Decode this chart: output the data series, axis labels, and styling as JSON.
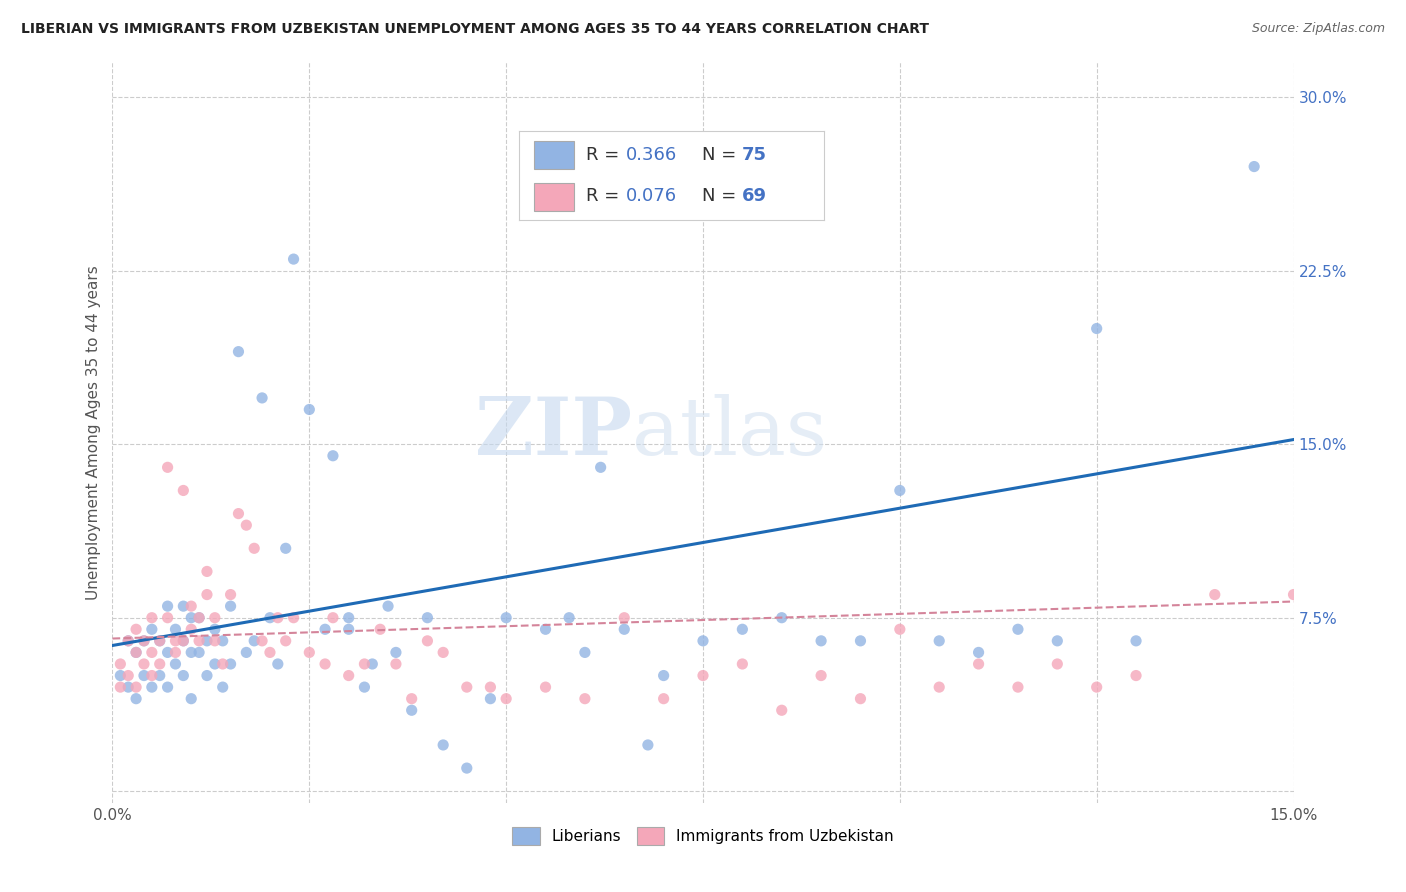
{
  "title": "LIBERIAN VS IMMIGRANTS FROM UZBEKISTAN UNEMPLOYMENT AMONG AGES 35 TO 44 YEARS CORRELATION CHART",
  "source": "Source: ZipAtlas.com",
  "ylabel": "Unemployment Among Ages 35 to 44 years",
  "xlim": [
    0.0,
    0.15
  ],
  "ylim": [
    -0.005,
    0.315
  ],
  "xticks": [
    0.0,
    0.025,
    0.05,
    0.075,
    0.1,
    0.125,
    0.15
  ],
  "xticklabels": [
    "0.0%",
    "",
    "",
    "",
    "",
    "",
    "15.0%"
  ],
  "yticks_right": [
    0.0,
    0.075,
    0.15,
    0.225,
    0.3
  ],
  "yticklabels_right": [
    "",
    "7.5%",
    "15.0%",
    "22.5%",
    "30.0%"
  ],
  "color_blue": "#92b4e3",
  "color_pink": "#f4a7b9",
  "line_color_blue": "#1e6ab5",
  "line_color_pink": "#d4849a",
  "watermark_zip": "ZIP",
  "watermark_atlas": "atlas",
  "blue_scatter_x": [
    0.001,
    0.002,
    0.002,
    0.003,
    0.003,
    0.004,
    0.004,
    0.005,
    0.005,
    0.006,
    0.006,
    0.007,
    0.007,
    0.007,
    0.008,
    0.008,
    0.009,
    0.009,
    0.009,
    0.01,
    0.01,
    0.01,
    0.011,
    0.011,
    0.012,
    0.012,
    0.013,
    0.013,
    0.014,
    0.014,
    0.015,
    0.015,
    0.016,
    0.017,
    0.018,
    0.019,
    0.02,
    0.021,
    0.022,
    0.023,
    0.025,
    0.027,
    0.028,
    0.03,
    0.03,
    0.032,
    0.033,
    0.035,
    0.036,
    0.038,
    0.04,
    0.042,
    0.045,
    0.048,
    0.05,
    0.055,
    0.058,
    0.06,
    0.062,
    0.065,
    0.068,
    0.07,
    0.075,
    0.08,
    0.085,
    0.09,
    0.095,
    0.1,
    0.105,
    0.11,
    0.115,
    0.12,
    0.125,
    0.13,
    0.145
  ],
  "blue_scatter_y": [
    0.05,
    0.065,
    0.045,
    0.06,
    0.04,
    0.065,
    0.05,
    0.07,
    0.045,
    0.065,
    0.05,
    0.06,
    0.08,
    0.045,
    0.07,
    0.055,
    0.08,
    0.065,
    0.05,
    0.075,
    0.06,
    0.04,
    0.075,
    0.06,
    0.065,
    0.05,
    0.07,
    0.055,
    0.065,
    0.045,
    0.08,
    0.055,
    0.19,
    0.06,
    0.065,
    0.17,
    0.075,
    0.055,
    0.105,
    0.23,
    0.165,
    0.07,
    0.145,
    0.075,
    0.07,
    0.045,
    0.055,
    0.08,
    0.06,
    0.035,
    0.075,
    0.02,
    0.01,
    0.04,
    0.075,
    0.07,
    0.075,
    0.06,
    0.14,
    0.07,
    0.02,
    0.05,
    0.065,
    0.07,
    0.075,
    0.065,
    0.065,
    0.13,
    0.065,
    0.06,
    0.07,
    0.065,
    0.2,
    0.065,
    0.27
  ],
  "pink_scatter_x": [
    0.001,
    0.001,
    0.002,
    0.002,
    0.003,
    0.003,
    0.003,
    0.004,
    0.004,
    0.005,
    0.005,
    0.005,
    0.006,
    0.006,
    0.007,
    0.007,
    0.008,
    0.008,
    0.009,
    0.009,
    0.01,
    0.01,
    0.011,
    0.011,
    0.012,
    0.012,
    0.013,
    0.013,
    0.014,
    0.015,
    0.016,
    0.017,
    0.018,
    0.019,
    0.02,
    0.021,
    0.022,
    0.023,
    0.025,
    0.027,
    0.028,
    0.03,
    0.032,
    0.034,
    0.036,
    0.038,
    0.04,
    0.042,
    0.045,
    0.048,
    0.05,
    0.055,
    0.06,
    0.065,
    0.07,
    0.075,
    0.08,
    0.085,
    0.09,
    0.095,
    0.1,
    0.105,
    0.11,
    0.115,
    0.12,
    0.125,
    0.13,
    0.14,
    0.15
  ],
  "pink_scatter_y": [
    0.055,
    0.045,
    0.065,
    0.05,
    0.07,
    0.06,
    0.045,
    0.065,
    0.055,
    0.075,
    0.06,
    0.05,
    0.065,
    0.055,
    0.075,
    0.14,
    0.065,
    0.06,
    0.13,
    0.065,
    0.08,
    0.07,
    0.065,
    0.075,
    0.095,
    0.085,
    0.065,
    0.075,
    0.055,
    0.085,
    0.12,
    0.115,
    0.105,
    0.065,
    0.06,
    0.075,
    0.065,
    0.075,
    0.06,
    0.055,
    0.075,
    0.05,
    0.055,
    0.07,
    0.055,
    0.04,
    0.065,
    0.06,
    0.045,
    0.045,
    0.04,
    0.045,
    0.04,
    0.075,
    0.04,
    0.05,
    0.055,
    0.035,
    0.05,
    0.04,
    0.07,
    0.045,
    0.055,
    0.045,
    0.055,
    0.045,
    0.05,
    0.085,
    0.085
  ],
  "blue_trend_x": [
    0.0,
    0.15
  ],
  "blue_trend_y": [
    0.063,
    0.152
  ],
  "pink_trend_x": [
    0.0,
    0.15
  ],
  "pink_trend_y": [
    0.066,
    0.082
  ]
}
